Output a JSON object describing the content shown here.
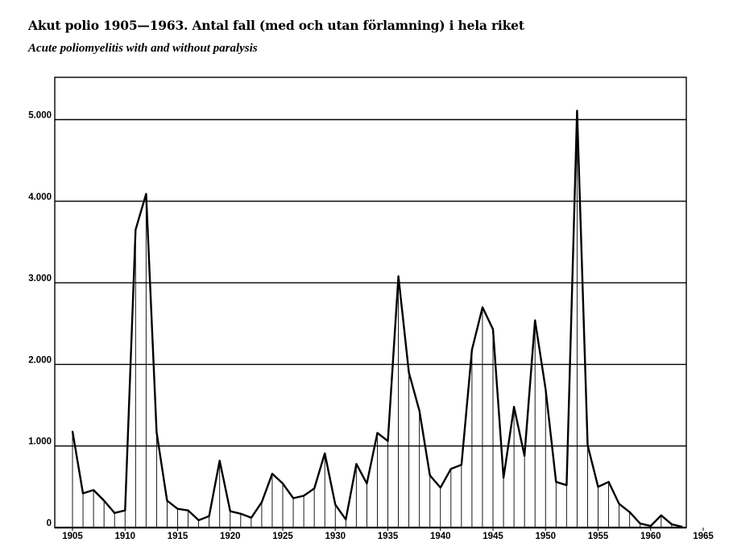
{
  "title": "Akut polio 1905—1963. Antal fall (med och utan förlamning) i hela riket",
  "subtitle": "Acute poliomyelitis with and without paralysis",
  "chart_data": {
    "type": "area",
    "title": "Akut polio 1905—1963. Antal fall (med och utan förlamning) i hela riket",
    "subtitle": "Acute poliomyelitis with and without paralysis",
    "xlabel": "",
    "ylabel": "",
    "xlim": [
      1905,
      1965
    ],
    "ylim": [
      0,
      5500
    ],
    "grid": true,
    "x_ticks": [
      "1905",
      "1910",
      "1915",
      "1920",
      "1925",
      "1930",
      "1935",
      "1940",
      "1945",
      "1950",
      "1955",
      "1960",
      "1965"
    ],
    "y_ticks": [
      "0",
      "1.000",
      "2.000",
      "3.000",
      "4.000",
      "5.000"
    ],
    "series": [
      {
        "name": "",
        "x": [
          1905,
          1906,
          1907,
          1908,
          1909,
          1910,
          1911,
          1912,
          1913,
          1914,
          1915,
          1916,
          1917,
          1918,
          1919,
          1920,
          1921,
          1922,
          1923,
          1924,
          1925,
          1926,
          1927,
          1928,
          1929,
          1930,
          1931,
          1932,
          1933,
          1934,
          1935,
          1936,
          1937,
          1938,
          1939,
          1940,
          1941,
          1942,
          1943,
          1944,
          1945,
          1946,
          1947,
          1948,
          1949,
          1950,
          1951,
          1952,
          1953,
          1954,
          1955,
          1956,
          1957,
          1958,
          1959,
          1960,
          1961,
          1962,
          1963
        ],
        "values": [
          1180,
          420,
          460,
          330,
          180,
          210,
          3650,
          4090,
          1170,
          330,
          230,
          210,
          90,
          140,
          820,
          200,
          170,
          120,
          310,
          660,
          540,
          360,
          390,
          480,
          910,
          280,
          100,
          780,
          540,
          1160,
          1060,
          3080,
          1900,
          1430,
          640,
          490,
          720,
          770,
          2180,
          2700,
          2430,
          610,
          1480,
          880,
          2540,
          1700,
          560,
          520,
          5110,
          1010,
          500,
          560,
          290,
          190,
          50,
          20,
          150,
          40,
          10
        ]
      }
    ]
  }
}
